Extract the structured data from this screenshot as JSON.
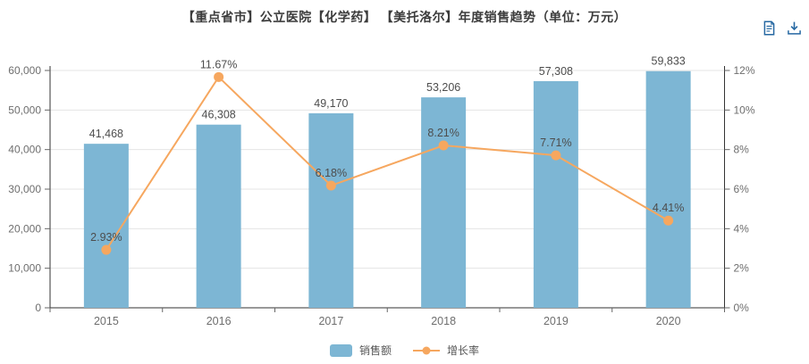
{
  "header": {
    "title": "【重点省市】公立医院【化学药】 【美托洛尔】年度销售趋势（单位：万元）",
    "icons": [
      {
        "name": "report-icon"
      },
      {
        "name": "download-icon"
      }
    ]
  },
  "colors": {
    "bar": "#7db6d4",
    "line": "#f6a75f",
    "grid": "#e5e5e5",
    "axis": "#333333",
    "tick": "#666666",
    "tick_text": "#6e6e6e",
    "data_label": "#4d4d4d",
    "icon": "#2668a2",
    "legend_text": "#565656"
  },
  "chart_data": {
    "type": "bar",
    "title": "【重点省市】公立医院【化学药】 【美托洛尔】年度销售趋势（单位：万元）",
    "categories": [
      "2015",
      "2016",
      "2017",
      "2018",
      "2019",
      "2020"
    ],
    "series": [
      {
        "name": "销售额",
        "type": "bar",
        "axis": "left",
        "values": [
          41468,
          46308,
          49170,
          53206,
          57308,
          59833
        ],
        "labels": [
          "41,468",
          "46,308",
          "49,170",
          "53,206",
          "57,308",
          "59,833"
        ]
      },
      {
        "name": "增长率",
        "type": "line",
        "axis": "right",
        "values": [
          2.93,
          11.67,
          6.18,
          8.21,
          7.71,
          4.41
        ],
        "labels": [
          "2.93%",
          "11.67%",
          "6.18%",
          "8.21%",
          "7.71%",
          "4.41%"
        ]
      }
    ],
    "left_axis": {
      "min": 0,
      "max": 60000,
      "step": 10000,
      "tick_labels": [
        "0",
        "10,000",
        "20,000",
        "30,000",
        "40,000",
        "50,000",
        "60,000"
      ]
    },
    "right_axis": {
      "min": 0,
      "max": 12,
      "step": 2,
      "tick_labels": [
        "0%",
        "2%",
        "4%",
        "6%",
        "8%",
        "10%",
        "12%"
      ]
    },
    "grid": true,
    "legend_position": "bottom"
  }
}
